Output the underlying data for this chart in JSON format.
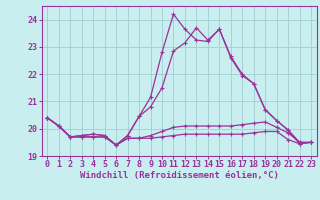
{
  "background_color": "#c8eef0",
  "grid_color": "#a0ccd0",
  "line_color": "#993399",
  "spine_color": "#993399",
  "xlim": [
    -0.5,
    23.5
  ],
  "ylim": [
    19.0,
    24.5
  ],
  "yticks": [
    19,
    20,
    21,
    22,
    23,
    24
  ],
  "xticks": [
    0,
    1,
    2,
    3,
    4,
    5,
    6,
    7,
    8,
    9,
    10,
    11,
    12,
    13,
    14,
    15,
    16,
    17,
    18,
    19,
    20,
    21,
    22,
    23
  ],
  "xlabel": "Windchill (Refroidissement éolien,°C)",
  "xlabel_fontsize": 6.5,
  "tick_fontsize": 6.0,
  "series": [
    [
      20.4,
      20.1,
      19.7,
      19.7,
      19.7,
      19.7,
      19.4,
      19.65,
      19.65,
      19.65,
      19.7,
      19.75,
      19.8,
      19.8,
      19.8,
      19.8,
      19.8,
      19.8,
      19.85,
      19.9,
      19.9,
      19.6,
      19.45,
      19.5
    ],
    [
      20.4,
      20.1,
      19.7,
      19.7,
      19.7,
      19.7,
      19.4,
      19.65,
      19.65,
      19.75,
      19.9,
      20.05,
      20.1,
      20.1,
      20.1,
      20.1,
      20.1,
      20.15,
      20.2,
      20.25,
      20.05,
      19.85,
      19.5,
      19.5
    ],
    [
      20.4,
      20.1,
      19.7,
      19.75,
      19.8,
      19.75,
      19.4,
      19.75,
      20.45,
      20.8,
      21.5,
      22.85,
      23.15,
      23.7,
      23.25,
      23.65,
      22.65,
      22.0,
      21.65,
      20.7,
      20.3,
      19.95,
      19.5,
      19.5
    ],
    [
      20.4,
      20.1,
      19.7,
      19.75,
      19.8,
      19.75,
      19.4,
      19.75,
      20.45,
      21.15,
      22.8,
      24.2,
      23.65,
      23.25,
      23.2,
      23.65,
      22.6,
      21.95,
      21.65,
      20.7,
      20.3,
      19.95,
      19.45,
      19.5
    ]
  ]
}
